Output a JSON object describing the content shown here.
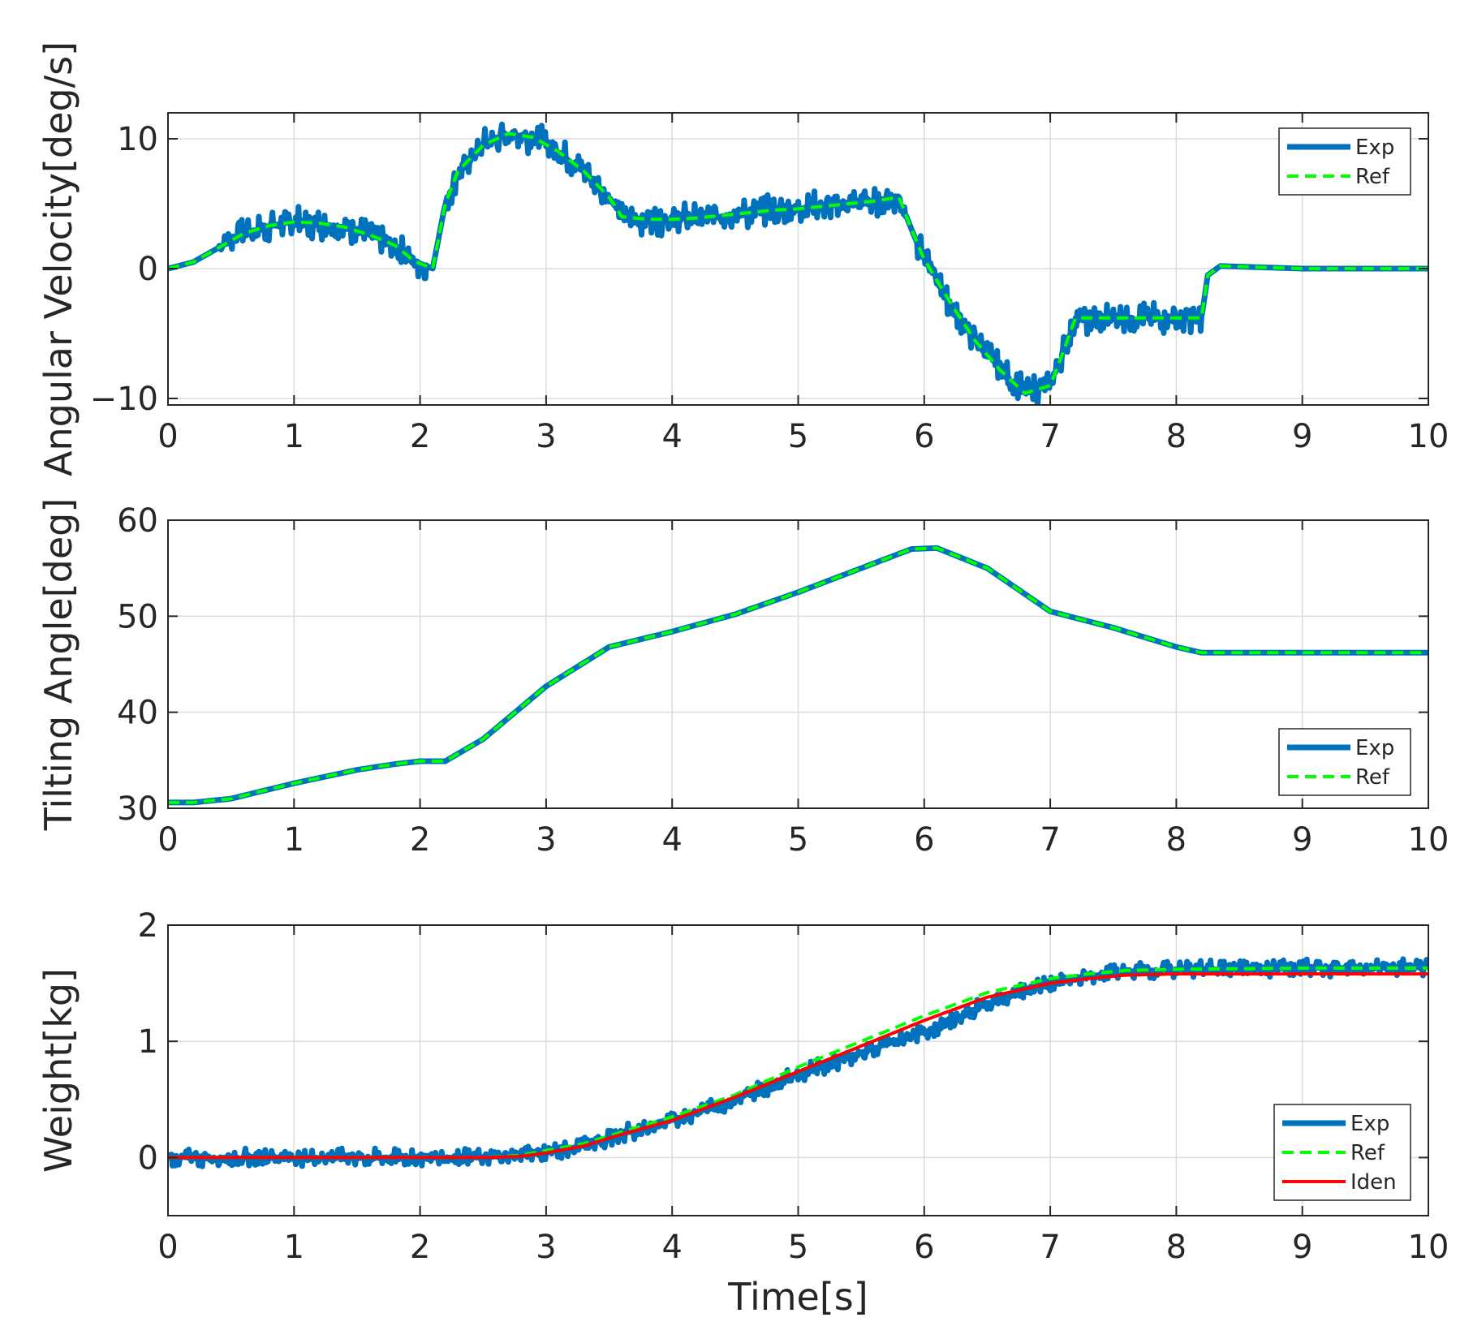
{
  "colors": {
    "exp": "#0072bd",
    "ref": "#00ff00",
    "iden": "#ff0000",
    "axis": "#262626",
    "grid": "#dcdcdc"
  },
  "chart_data": [
    {
      "type": "line",
      "id": "angular-velocity",
      "ylabel": "Angular Velocity[deg/s]",
      "xlabel": "",
      "xlim": [
        0,
        10
      ],
      "ylim": [
        -10.5,
        12
      ],
      "xticks": [
        0,
        1,
        2,
        3,
        4,
        5,
        6,
        7,
        8,
        9,
        10
      ],
      "yticks": [
        -10,
        0,
        10
      ],
      "ytick_labels": [
        "−10",
        "0",
        "10"
      ],
      "grid": true,
      "legend_position": "top-right",
      "series": [
        {
          "name": "Exp",
          "style": "solid-thick",
          "noise_amp": 1.3,
          "noise_zones": [
            [
              0.4,
              2.05
            ],
            [
              2.2,
              3.5
            ],
            [
              3.55,
              5.85
            ],
            [
              5.95,
              7.25
            ],
            [
              7.2,
              8.2
            ]
          ],
          "x": [
            0,
            0.2,
            0.4,
            0.6,
            0.8,
            1.0,
            1.2,
            1.4,
            1.6,
            1.8,
            1.95,
            2.1,
            2.2,
            2.3,
            2.5,
            2.7,
            2.9,
            3.1,
            3.3,
            3.5,
            3.6,
            3.8,
            4.0,
            4.2,
            4.4,
            4.6,
            4.8,
            5.0,
            5.2,
            5.4,
            5.6,
            5.8,
            5.9,
            6.0,
            6.2,
            6.4,
            6.6,
            6.8,
            7.0,
            7.1,
            7.2,
            7.5,
            8.0,
            8.2,
            8.25,
            8.35,
            9,
            10
          ],
          "y": [
            0,
            0.5,
            1.6,
            2.7,
            3.3,
            3.6,
            3.5,
            3.2,
            2.6,
            1.8,
            0.6,
            0,
            5,
            7.5,
            9.5,
            10.4,
            10.1,
            9,
            7.5,
            5.5,
            4,
            3.8,
            3.8,
            3.9,
            4.1,
            4.3,
            4.5,
            4.6,
            4.8,
            5.0,
            5.2,
            5.5,
            3,
            0.7,
            -2.5,
            -5.5,
            -7.8,
            -9.6,
            -9,
            -6.5,
            -3.8,
            -3.8,
            -3.8,
            -3.8,
            -0.5,
            0.2,
            0,
            0
          ]
        },
        {
          "name": "Ref",
          "style": "dashed",
          "x": [
            0,
            0.2,
            0.4,
            0.6,
            0.8,
            1.0,
            1.2,
            1.4,
            1.6,
            1.8,
            1.95,
            2.1,
            2.2,
            2.3,
            2.5,
            2.7,
            2.9,
            3.1,
            3.3,
            3.5,
            3.6,
            3.8,
            4.0,
            4.2,
            4.4,
            4.6,
            4.8,
            5.0,
            5.2,
            5.4,
            5.6,
            5.8,
            5.9,
            6.0,
            6.2,
            6.4,
            6.6,
            6.8,
            7.0,
            7.1,
            7.2,
            7.5,
            8.0,
            8.2,
            8.25,
            8.35,
            9,
            10
          ],
          "y": [
            0,
            0.5,
            1.6,
            2.7,
            3.3,
            3.6,
            3.5,
            3.2,
            2.6,
            1.8,
            0.6,
            0,
            5,
            7.5,
            9.5,
            10.4,
            10.1,
            9,
            7.5,
            5.5,
            4,
            3.8,
            3.8,
            3.9,
            4.1,
            4.3,
            4.5,
            4.6,
            4.8,
            5.0,
            5.2,
            5.5,
            3,
            0.7,
            -2.5,
            -5.5,
            -7.8,
            -9.6,
            -9,
            -6.5,
            -3.8,
            -3.8,
            -3.8,
            -3.8,
            -0.5,
            0.2,
            0,
            0
          ]
        }
      ]
    },
    {
      "type": "line",
      "id": "tilting-angle",
      "ylabel": "Tilting Angle[deg]",
      "xlabel": "",
      "xlim": [
        0,
        10
      ],
      "ylim": [
        30,
        60
      ],
      "xticks": [
        0,
        1,
        2,
        3,
        4,
        5,
        6,
        7,
        8,
        9,
        10
      ],
      "yticks": [
        30,
        40,
        50,
        60
      ],
      "ytick_labels": [
        "30",
        "40",
        "50",
        "60"
      ],
      "grid": true,
      "legend_position": "lower-right",
      "series": [
        {
          "name": "Exp",
          "style": "solid-thick",
          "noise_amp": 0,
          "x": [
            0,
            0.2,
            0.5,
            1.0,
            1.5,
            1.8,
            2.0,
            2.2,
            2.5,
            3.0,
            3.5,
            4.0,
            4.5,
            5.0,
            5.5,
            5.9,
            6.1,
            6.5,
            7.0,
            7.5,
            8.0,
            8.2,
            9,
            10
          ],
          "y": [
            30.6,
            30.6,
            31.0,
            32.6,
            34.0,
            34.6,
            34.9,
            34.9,
            37.2,
            42.7,
            46.8,
            48.4,
            50.2,
            52.5,
            55.0,
            57.0,
            57.1,
            55.0,
            50.5,
            48.8,
            46.8,
            46.2,
            46.2,
            46.2
          ]
        },
        {
          "name": "Ref",
          "style": "dashed",
          "x": [
            0,
            0.2,
            0.5,
            1.0,
            1.5,
            1.8,
            2.0,
            2.2,
            2.5,
            3.0,
            3.5,
            4.0,
            4.5,
            5.0,
            5.5,
            5.9,
            6.1,
            6.5,
            7.0,
            7.5,
            8.0,
            8.2,
            9,
            10
          ],
          "y": [
            30.6,
            30.6,
            31.0,
            32.6,
            34.0,
            34.6,
            34.9,
            34.9,
            37.2,
            42.7,
            46.8,
            48.4,
            50.2,
            52.5,
            55.0,
            57.0,
            57.1,
            55.0,
            50.5,
            48.8,
            46.8,
            46.2,
            46.2,
            46.2
          ]
        }
      ]
    },
    {
      "type": "line",
      "id": "weight",
      "ylabel": "Weight[kg]",
      "xlabel": "Time[s]",
      "xlim": [
        0,
        10
      ],
      "ylim": [
        -0.5,
        2
      ],
      "xticks": [
        0,
        1,
        2,
        3,
        4,
        5,
        6,
        7,
        8,
        9,
        10
      ],
      "yticks": [
        0,
        1,
        2
      ],
      "ytick_labels": [
        "0",
        "1",
        "2"
      ],
      "grid": true,
      "legend_position": "lower-right",
      "series": [
        {
          "name": "Exp",
          "style": "solid-thick",
          "noise_amp": 0.08,
          "noise_zones": [
            [
              0,
              10
            ]
          ],
          "x": [
            0,
            0.5,
            1,
            1.5,
            2,
            2.5,
            2.8,
            3.0,
            3.3,
            3.6,
            4.0,
            4.5,
            5.0,
            5.5,
            6.0,
            6.5,
            7.0,
            7.3,
            7.6,
            8.0,
            9,
            10
          ],
          "y": [
            0,
            0,
            0,
            0,
            0,
            0,
            0.02,
            0.05,
            0.1,
            0.2,
            0.32,
            0.5,
            0.72,
            0.9,
            1.08,
            1.32,
            1.5,
            1.56,
            1.6,
            1.62,
            1.63,
            1.64
          ]
        },
        {
          "name": "Ref",
          "style": "dashed",
          "x": [
            0,
            0.5,
            1,
            1.5,
            2,
            2.5,
            2.8,
            3.0,
            3.3,
            3.6,
            4.0,
            4.5,
            5.0,
            5.5,
            6.0,
            6.5,
            7.0,
            7.3,
            7.6,
            8.0,
            9,
            10
          ],
          "y": [
            0,
            0,
            0,
            0,
            0,
            0,
            0.02,
            0.06,
            0.12,
            0.22,
            0.35,
            0.54,
            0.78,
            1.0,
            1.22,
            1.42,
            1.54,
            1.58,
            1.61,
            1.62,
            1.63,
            1.63
          ]
        },
        {
          "name": "Iden",
          "style": "solid",
          "x": [
            0,
            0.5,
            1,
            1.5,
            2,
            2.5,
            2.8,
            3.0,
            3.3,
            3.6,
            4.0,
            4.5,
            5.0,
            5.5,
            6.0,
            6.5,
            7.0,
            7.3,
            7.6,
            8.0,
            9,
            10
          ],
          "y": [
            0,
            0,
            0,
            0,
            0,
            0,
            0.01,
            0.04,
            0.1,
            0.2,
            0.32,
            0.52,
            0.74,
            0.96,
            1.18,
            1.38,
            1.5,
            1.54,
            1.57,
            1.58,
            1.58,
            1.58
          ]
        }
      ]
    }
  ]
}
